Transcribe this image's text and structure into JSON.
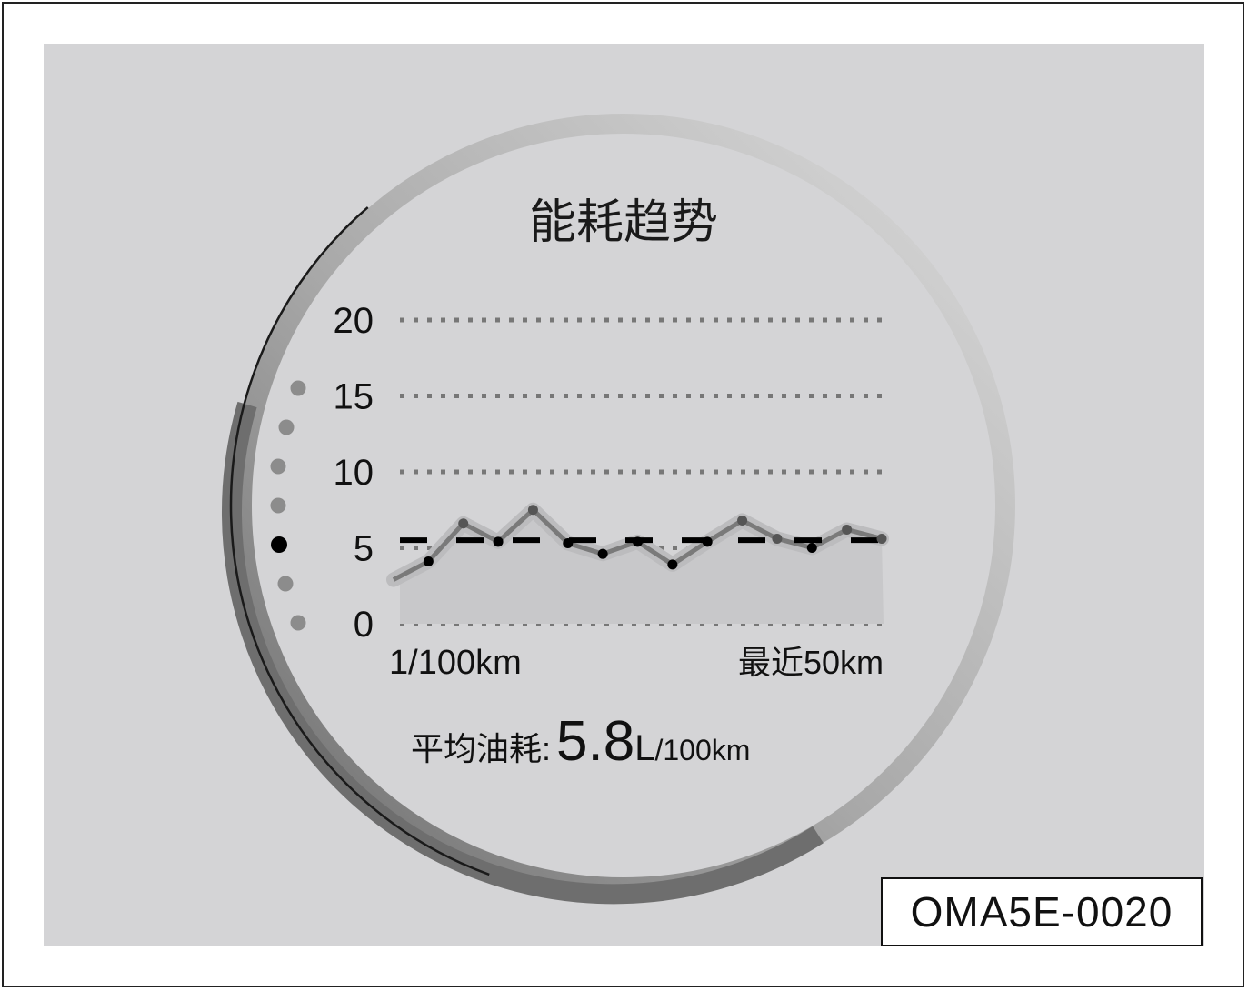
{
  "title": "能耗趋势",
  "code_label": "OMA5E-0020",
  "average": {
    "label": "平均油耗:",
    "value": "5.8",
    "unit_big": "L",
    "unit_small": "/100km"
  },
  "colors": {
    "panel": "#d4d4d6",
    "line": "#7a7a7a",
    "area": "#c8c8ca",
    "dash": "#000000",
    "grid": "#777777"
  },
  "scale_dots": {
    "count": 7,
    "active_index": 4
  },
  "chart_data": {
    "type": "line",
    "title": "能耗趋势",
    "ylabel": "1/100km",
    "xlabel": "最近50km",
    "ylim": [
      0,
      20
    ],
    "yticks": [
      "0",
      "5",
      "10",
      "15",
      "20"
    ],
    "grid": true,
    "values": [
      2.9,
      4.1,
      6.6,
      5.4,
      7.5,
      5.3,
      4.6,
      5.4,
      3.9,
      5.4,
      6.8,
      5.6,
      5.0,
      6.2,
      5.6
    ],
    "reference_line": 5.5
  }
}
